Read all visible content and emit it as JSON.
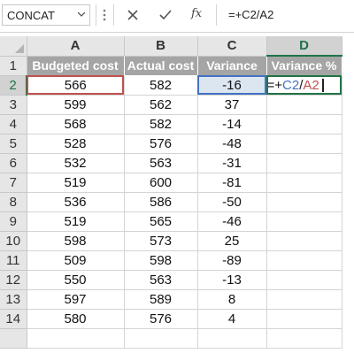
{
  "formula_bar": {
    "name_box": "CONCAT",
    "cancel_icon": "close-icon",
    "enter_icon": "check-icon",
    "fx_label": "fx",
    "formula": "=+C2/A2"
  },
  "columns": [
    "A",
    "B",
    "C",
    "D"
  ],
  "rows": [
    "1",
    "2",
    "3",
    "4",
    "5",
    "6",
    "7",
    "8",
    "9",
    "10",
    "11",
    "12",
    "13",
    "14"
  ],
  "headers": [
    "Budgeted cost",
    "Actual cost",
    "Variance",
    "Variance %"
  ],
  "data": [
    {
      "budgeted": "566",
      "actual": "582",
      "variance": "-16"
    },
    {
      "budgeted": "599",
      "actual": "562",
      "variance": "37"
    },
    {
      "budgeted": "568",
      "actual": "582",
      "variance": "-14"
    },
    {
      "budgeted": "528",
      "actual": "576",
      "variance": "-48"
    },
    {
      "budgeted": "532",
      "actual": "563",
      "variance": "-31"
    },
    {
      "budgeted": "519",
      "actual": "600",
      "variance": "-81"
    },
    {
      "budgeted": "536",
      "actual": "586",
      "variance": "-50"
    },
    {
      "budgeted": "519",
      "actual": "565",
      "variance": "-46"
    },
    {
      "budgeted": "598",
      "actual": "573",
      "variance": "25"
    },
    {
      "budgeted": "509",
      "actual": "598",
      "variance": "-89"
    },
    {
      "budgeted": "550",
      "actual": "563",
      "variance": "-13"
    },
    {
      "budgeted": "597",
      "actual": "589",
      "variance": "8"
    },
    {
      "budgeted": "580",
      "actual": "576",
      "variance": "4"
    }
  ],
  "active_cell": {
    "prefix": "=+",
    "ref1": "C2",
    "op": "/",
    "ref2": "A2"
  },
  "colors": {
    "header_fill": "#a5a5a5",
    "excel_green": "#217346",
    "ref_red": "#c0504d",
    "ref_blue": "#4472c4"
  }
}
